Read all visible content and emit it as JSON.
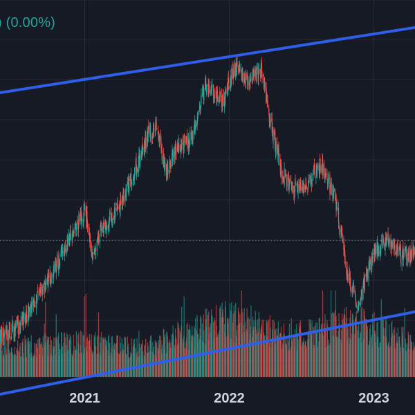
{
  "header": {
    "change_text": ") (0.00%)",
    "change_color": "#26a69a"
  },
  "colors": {
    "background": "#161a25",
    "grid": "#262b38",
    "up": "#26a69a",
    "down": "#ef5350",
    "trendline": "#2f5fe8",
    "price_line": "#26a69a",
    "axis_text": "#d1d4dc"
  },
  "chart_data": {
    "type": "candlestick",
    "x_axis": {
      "tick_labels": [
        "2021",
        "2022",
        "2023"
      ],
      "range": [
        "2020-06-01",
        "2023-04-15"
      ]
    },
    "y_axis": {
      "range": [
        24,
        61
      ],
      "scale": "linear",
      "labels_visible": false
    },
    "grid": true,
    "price_trend": [
      [
        "2020-06-01",
        27.9
      ],
      [
        "2020-07-15",
        28.8
      ],
      [
        "2020-09-01",
        31.5
      ],
      [
        "2020-10-15",
        34.6
      ],
      [
        "2020-12-01",
        38.2
      ],
      [
        "2021-01-03",
        40.5
      ],
      [
        "2021-01-20",
        35.6
      ],
      [
        "2021-02-10",
        38.4
      ],
      [
        "2021-03-20",
        40.0
      ],
      [
        "2021-05-01",
        43.5
      ],
      [
        "2021-06-10",
        47.8
      ],
      [
        "2021-07-01",
        48.6
      ],
      [
        "2021-07-25",
        44.2
      ],
      [
        "2021-08-20",
        46.3
      ],
      [
        "2021-10-01",
        47.5
      ],
      [
        "2021-11-01",
        52.6
      ],
      [
        "2021-12-15",
        51.2
      ],
      [
        "2022-01-15",
        54.5
      ],
      [
        "2022-02-20",
        53.2
      ],
      [
        "2022-03-25",
        54.0
      ],
      [
        "2022-04-20",
        47.9
      ],
      [
        "2022-05-15",
        44.0
      ],
      [
        "2022-06-15",
        42.3
      ],
      [
        "2022-07-15",
        42.8
      ],
      [
        "2022-08-20",
        45.0
      ],
      [
        "2022-09-25",
        41.5
      ],
      [
        "2022-10-25",
        34.5
      ],
      [
        "2022-11-25",
        30.5
      ],
      [
        "2022-12-10",
        33.6
      ],
      [
        "2023-01-10",
        36.6
      ],
      [
        "2023-02-10",
        37.5
      ],
      [
        "2023-03-10",
        36.0
      ],
      [
        "2023-04-15",
        36.2
      ]
    ],
    "current_price": 37.4,
    "trendlines": [
      {
        "from": [
          "2020-06-01",
          51.9
        ],
        "to": [
          "2023-04-15",
          58.3
        ]
      },
      {
        "from": [
          "2020-06-01",
          22.3
        ],
        "to": [
          "2023-04-15",
          30.4
        ]
      }
    ],
    "volume_trend": [
      [
        "2020-06-01",
        0.45
      ],
      [
        "2021-01-03",
        0.55
      ],
      [
        "2021-06-01",
        0.45
      ],
      [
        "2021-12-20",
        0.9
      ],
      [
        "2022-06-01",
        0.65
      ],
      [
        "2022-12-01",
        0.85
      ],
      [
        "2023-04-15",
        0.5
      ]
    ]
  }
}
